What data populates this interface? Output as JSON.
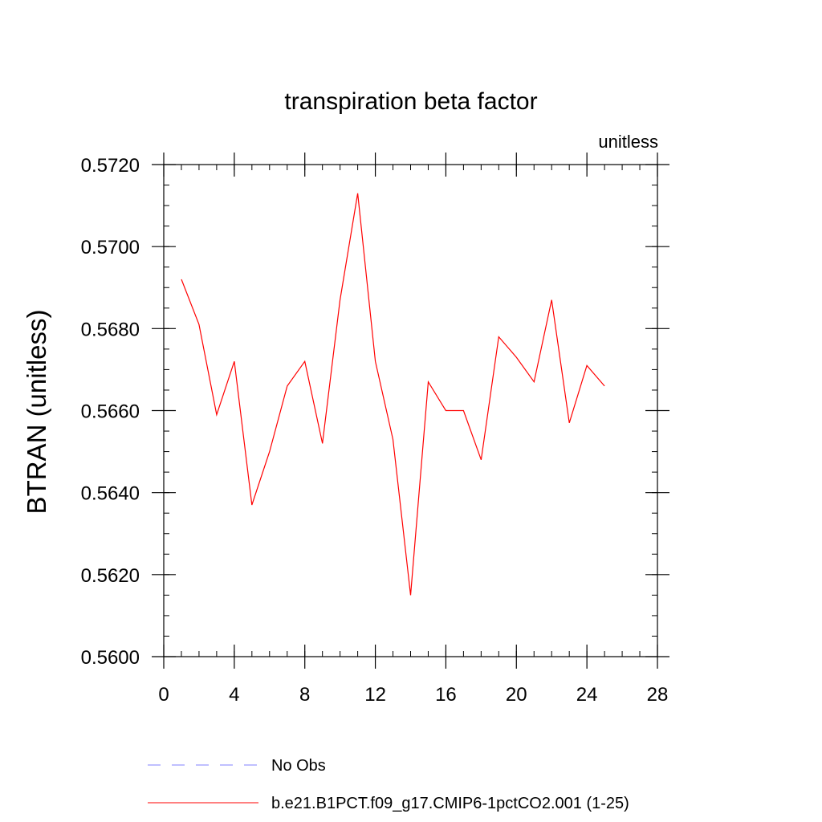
{
  "chart_data": {
    "type": "line",
    "title": "transpiration beta factor",
    "units_label": "unitless",
    "xlabel": "",
    "ylabel": "BTRAN  (unitless)",
    "xlim": [
      0,
      28
    ],
    "ylim": [
      0.56,
      0.572
    ],
    "x_major_ticks": [
      0,
      4,
      8,
      12,
      16,
      20,
      24,
      28
    ],
    "x_minor_step": 1,
    "y_major_ticks": [
      0.56,
      0.562,
      0.564,
      0.566,
      0.568,
      0.57,
      0.572
    ],
    "y_minor_step": 0.0005,
    "y_tick_labels": [
      "0.5600",
      "0.5620",
      "0.5640",
      "0.5660",
      "0.5680",
      "0.5700",
      "0.5720"
    ],
    "grid": false,
    "series": [
      {
        "name": "b.e21.B1PCT.f09_g17.CMIP6-1pctCO2.001 (1-25)",
        "color": "#ff0000",
        "dash": "solid",
        "x": [
          1,
          2,
          3,
          4,
          5,
          6,
          7,
          8,
          9,
          10,
          11,
          12,
          13,
          14,
          15,
          16,
          17,
          18,
          19,
          20,
          21,
          22,
          23,
          24,
          25
        ],
        "y": [
          0.5692,
          0.5681,
          0.5659,
          0.5672,
          0.5637,
          0.565,
          0.5666,
          0.5672,
          0.5652,
          0.5687,
          0.5713,
          0.5672,
          0.5653,
          0.5615,
          0.5667,
          0.566,
          0.566,
          0.5648,
          0.5678,
          0.5673,
          0.5667,
          0.5687,
          0.5657,
          0.5671,
          0.5666
        ]
      }
    ],
    "legend": {
      "placement": "bottom",
      "entries": [
        {
          "label": "No Obs",
          "color": "#8080ff",
          "dash": "dashed"
        },
        {
          "label": "b.e21.B1PCT.f09_g17.CMIP6-1pctCO2.001 (1-25)",
          "color": "#ff0000",
          "dash": "solid"
        }
      ]
    }
  }
}
